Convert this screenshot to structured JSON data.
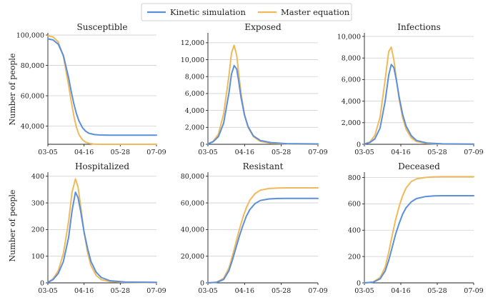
{
  "legend": [
    {
      "name": "Kinetic simulation",
      "color": "#5b8fdc"
    },
    {
      "name": "Master equation",
      "color": "#f0b95a"
    }
  ],
  "y_axis_title": "Number of people",
  "chart_data": [
    {
      "type": "line",
      "title": "Susceptible",
      "xlabel": "",
      "ylabel": "Number of people",
      "x_ticks": [
        "03-05",
        "04-16",
        "05-28",
        "07-09"
      ],
      "y_ticks": [
        "40,000",
        "60,000",
        "80,000",
        "100,000"
      ],
      "y_tick_values": [
        40000,
        60000,
        80000,
        100000
      ],
      "x_range_days": [
        0,
        126
      ],
      "ylim": [
        28000,
        100500
      ],
      "grid": "horizontal",
      "series": [
        {
          "name": "Kinetic simulation",
          "color": "#5b8fdc",
          "x": [
            0,
            6,
            12,
            18,
            24,
            27,
            30,
            33,
            36,
            40,
            44,
            48,
            54,
            60,
            72,
            90,
            126
          ],
          "y": [
            97500,
            96800,
            94000,
            86500,
            72000,
            63000,
            55000,
            48500,
            43500,
            39000,
            36500,
            35200,
            34400,
            34100,
            34000,
            34000,
            34000
          ]
        },
        {
          "name": "Master equation",
          "color": "#f0b95a",
          "x": [
            0,
            6,
            12,
            18,
            24,
            27,
            30,
            33,
            36,
            40,
            44,
            48,
            54,
            60,
            72,
            90,
            126
          ],
          "y": [
            99500,
            98800,
            95500,
            86000,
            67000,
            56500,
            47000,
            39500,
            34500,
            31000,
            29300,
            28600,
            28100,
            28000,
            28000,
            28000,
            28000
          ]
        }
      ]
    },
    {
      "type": "line",
      "title": "Exposed",
      "xlabel": "",
      "ylabel": "",
      "x_ticks": [
        "03-05",
        "04-16",
        "05-28",
        "07-09"
      ],
      "y_ticks": [
        "0",
        "2,000",
        "4,000",
        "6,000",
        "8,000",
        "10,000",
        "12,000"
      ],
      "y_tick_values": [
        0,
        2000,
        4000,
        6000,
        8000,
        10000,
        12000
      ],
      "x_range_days": [
        0,
        126
      ],
      "ylim": [
        0,
        13000
      ],
      "grid": "horizontal",
      "series": [
        {
          "name": "Kinetic simulation",
          "color": "#5b8fdc",
          "x": [
            0,
            6,
            12,
            18,
            24,
            27,
            30,
            33,
            35,
            38,
            42,
            46,
            52,
            60,
            72,
            90,
            126
          ],
          "y": [
            50,
            300,
            900,
            2500,
            6000,
            8300,
            9300,
            8900,
            7600,
            5500,
            3400,
            2100,
            1000,
            450,
            200,
            80,
            40
          ]
        },
        {
          "name": "Master equation",
          "color": "#f0b95a",
          "x": [
            0,
            6,
            12,
            18,
            24,
            27,
            30,
            33,
            35,
            38,
            42,
            46,
            52,
            60,
            72,
            90,
            126
          ],
          "y": [
            50,
            350,
            1200,
            3600,
            8000,
            10800,
            11700,
            10500,
            8600,
            6000,
            3500,
            2000,
            900,
            350,
            120,
            40,
            10
          ]
        }
      ]
    },
    {
      "type": "line",
      "title": "Infections",
      "xlabel": "",
      "ylabel": "",
      "x_ticks": [
        "03-05",
        "04-16",
        "05-28",
        "07-09"
      ],
      "y_ticks": [
        "0",
        "2,000",
        "4,000",
        "6,000",
        "8,000",
        "10,000"
      ],
      "y_tick_values": [
        0,
        2000,
        4000,
        6000,
        8000,
        10000
      ],
      "x_range_days": [
        0,
        126
      ],
      "ylim": [
        0,
        10200
      ],
      "grid": "horizontal",
      "series": [
        {
          "name": "Kinetic simulation",
          "color": "#5b8fdc",
          "x": [
            0,
            6,
            12,
            18,
            24,
            28,
            31,
            34,
            37,
            40,
            44,
            48,
            54,
            60,
            72,
            90,
            126
          ],
          "y": [
            30,
            150,
            500,
            1500,
            4000,
            6400,
            7400,
            7100,
            5900,
            4400,
            2800,
            1700,
            800,
            350,
            120,
            40,
            10
          ]
        },
        {
          "name": "Master equation",
          "color": "#f0b95a",
          "x": [
            0,
            6,
            12,
            18,
            24,
            28,
            31,
            34,
            37,
            40,
            44,
            48,
            54,
            60,
            72,
            90,
            126
          ],
          "y": [
            30,
            200,
            800,
            2500,
            6000,
            8600,
            9000,
            7800,
            6000,
            4200,
            2500,
            1400,
            600,
            250,
            70,
            20,
            5
          ]
        }
      ]
    },
    {
      "type": "line",
      "title": "Hospitalized",
      "xlabel": "",
      "ylabel": "Number of people",
      "x_ticks": [
        "03-05",
        "04-16",
        "05-28",
        "07-09"
      ],
      "y_ticks": [
        "0",
        "100",
        "200",
        "300",
        "400"
      ],
      "y_tick_values": [
        0,
        100,
        200,
        300,
        400
      ],
      "x_range_days": [
        0,
        126
      ],
      "ylim": [
        0,
        410
      ],
      "grid": "horizontal",
      "series": [
        {
          "name": "Kinetic simulation",
          "color": "#5b8fdc",
          "x": [
            0,
            6,
            12,
            18,
            24,
            28,
            32,
            35,
            38,
            42,
            46,
            50,
            56,
            62,
            72,
            90,
            126
          ],
          "y": [
            2,
            12,
            35,
            80,
            170,
            270,
            340,
            320,
            270,
            190,
            130,
            80,
            40,
            20,
            8,
            3,
            2
          ]
        },
        {
          "name": "Master equation",
          "color": "#f0b95a",
          "x": [
            0,
            6,
            12,
            18,
            24,
            28,
            32,
            35,
            38,
            42,
            46,
            50,
            56,
            62,
            72,
            90,
            126
          ],
          "y": [
            2,
            15,
            45,
            110,
            230,
            340,
            390,
            360,
            290,
            190,
            115,
            65,
            28,
            12,
            5,
            2,
            1
          ]
        }
      ]
    },
    {
      "type": "line",
      "title": "Resistant",
      "xlabel": "",
      "ylabel": "",
      "x_ticks": [
        "03-05",
        "04-16",
        "05-28",
        "07-09"
      ],
      "y_ticks": [
        "0",
        "20,000",
        "40,000",
        "60,000",
        "80,000"
      ],
      "y_tick_values": [
        0,
        20000,
        40000,
        60000,
        80000
      ],
      "x_range_days": [
        0,
        126
      ],
      "ylim": [
        0,
        82000
      ],
      "grid": "horizontal",
      "series": [
        {
          "name": "Kinetic simulation",
          "color": "#5b8fdc",
          "x": [
            0,
            10,
            18,
            24,
            28,
            32,
            36,
            40,
            44,
            48,
            54,
            60,
            70,
            80,
            90,
            126
          ],
          "y": [
            0,
            400,
            2500,
            9000,
            17000,
            26000,
            35000,
            43000,
            50000,
            55000,
            59500,
            61800,
            63000,
            63300,
            63400,
            63400
          ]
        },
        {
          "name": "Master equation",
          "color": "#f0b95a",
          "x": [
            0,
            10,
            18,
            24,
            28,
            32,
            36,
            40,
            44,
            48,
            54,
            60,
            70,
            80,
            90,
            126
          ],
          "y": [
            0,
            500,
            3500,
            11000,
            20000,
            30000,
            40000,
            49000,
            56500,
            62000,
            67000,
            69500,
            70800,
            71200,
            71300,
            71300
          ]
        }
      ]
    },
    {
      "type": "line",
      "title": "Deceased",
      "xlabel": "",
      "ylabel": "",
      "x_ticks": [
        "03-05",
        "04-16",
        "05-28",
        "07-09"
      ],
      "y_ticks": [
        "0",
        "200",
        "400",
        "600",
        "800"
      ],
      "y_tick_values": [
        0,
        200,
        400,
        600,
        800
      ],
      "x_range_days": [
        0,
        126
      ],
      "ylim": [
        0,
        830
      ],
      "grid": "horizontal",
      "series": [
        {
          "name": "Kinetic simulation",
          "color": "#5b8fdc",
          "x": [
            0,
            10,
            18,
            24,
            28,
            32,
            36,
            40,
            44,
            48,
            54,
            60,
            70,
            80,
            90,
            126
          ],
          "y": [
            0,
            5,
            30,
            90,
            170,
            270,
            370,
            450,
            520,
            570,
            615,
            640,
            655,
            660,
            662,
            662
          ]
        },
        {
          "name": "Master equation",
          "color": "#f0b95a",
          "x": [
            0,
            10,
            18,
            24,
            28,
            32,
            36,
            40,
            44,
            48,
            54,
            60,
            70,
            80,
            90,
            126
          ],
          "y": [
            0,
            6,
            40,
            120,
            230,
            360,
            480,
            580,
            660,
            720,
            770,
            790,
            800,
            805,
            806,
            806
          ]
        }
      ]
    }
  ]
}
